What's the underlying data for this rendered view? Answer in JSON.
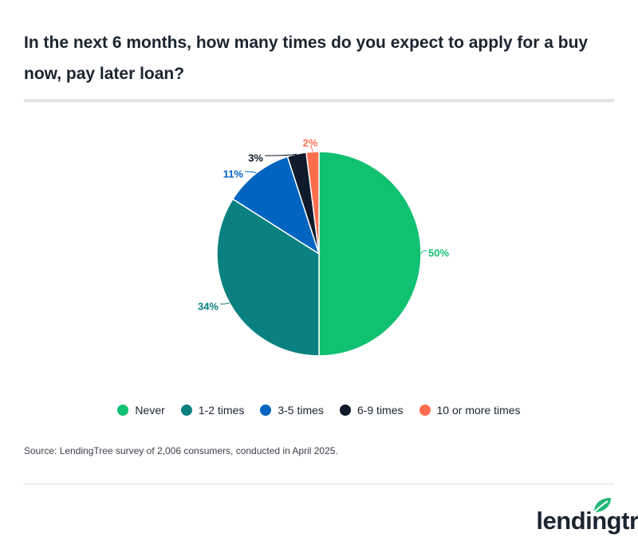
{
  "title": "In the next 6 months, how many times do you expect to apply for a buy now, pay later loan?",
  "source": "Source: LendingTree survey of 2,006 consumers, conducted in April 2025.",
  "logo": {
    "text": "lendingtree",
    "icon": "leaf-icon",
    "color": "#1fb873"
  },
  "chart_data": {
    "type": "pie",
    "title": "In the next 6 months, how many times do you expect to apply for a buy now, pay later loan?",
    "legend_position": "bottom",
    "slices": [
      {
        "label": "Never",
        "value": 50,
        "display": "50%",
        "color": "#10c172"
      },
      {
        "label": "1-2 times",
        "value": 34,
        "display": "34%",
        "color": "#0a8180"
      },
      {
        "label": "3-5 times",
        "value": 11,
        "display": "11%",
        "color": "#0064c0"
      },
      {
        "label": "6-9 times",
        "value": 3,
        "display": "3%",
        "color": "#0f1a2b"
      },
      {
        "label": "10 or more times",
        "value": 2,
        "display": "2%",
        "color": "#ff6f4e"
      }
    ]
  }
}
